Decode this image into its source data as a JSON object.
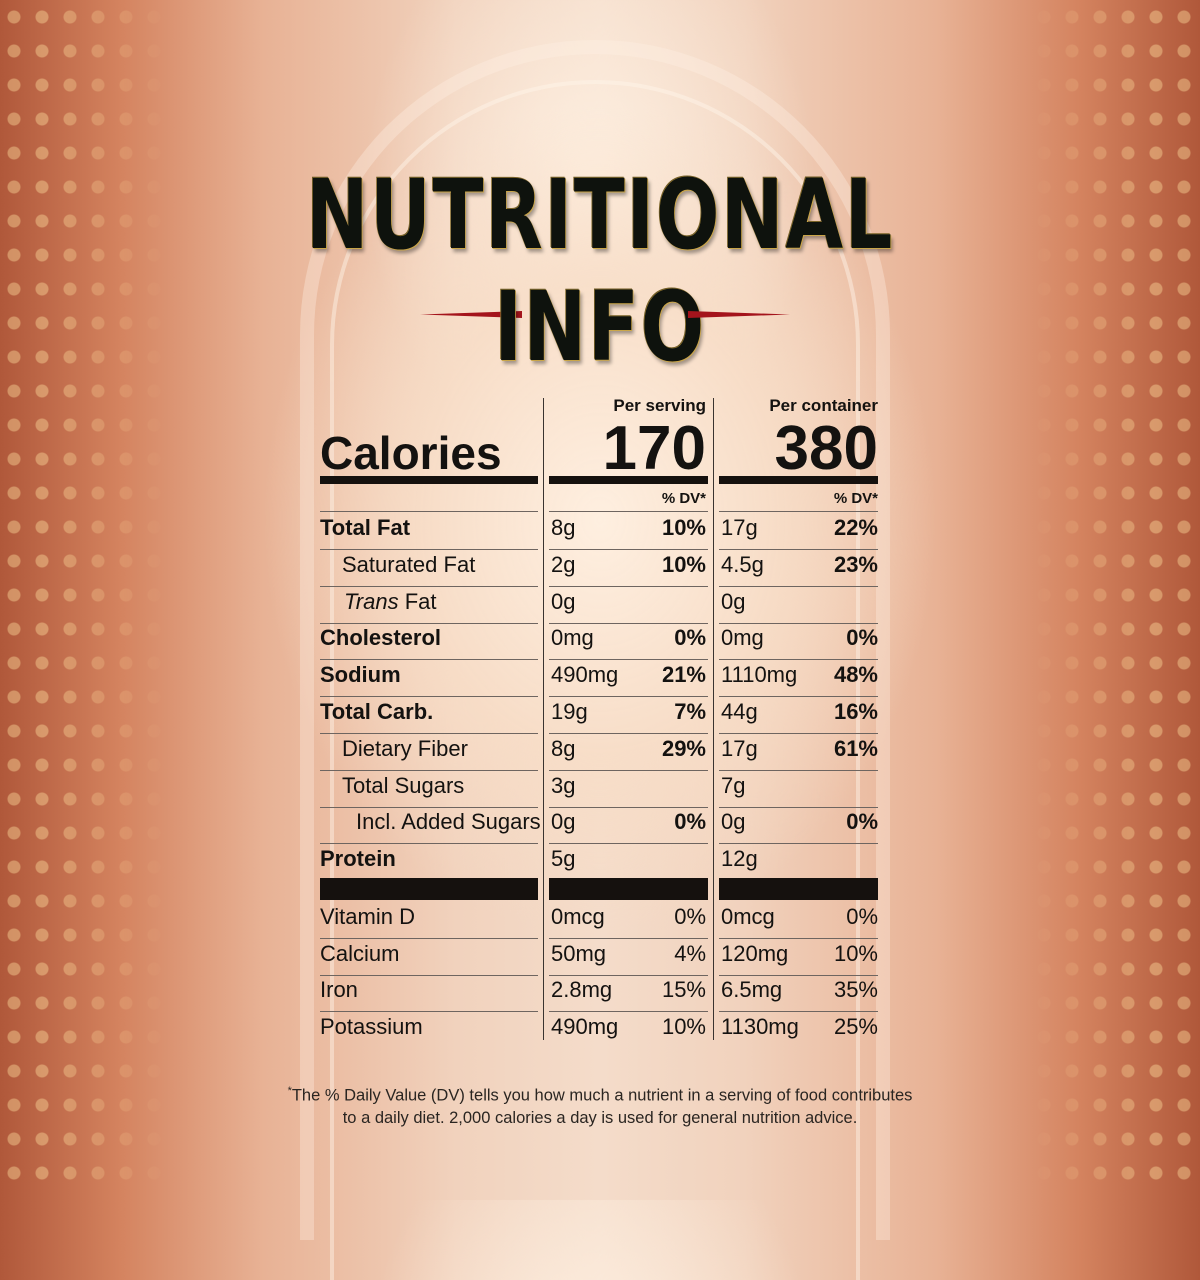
{
  "title": {
    "line1": "NUTRITIONAL",
    "line2": "INFO"
  },
  "header": {
    "per_serving": "Per serving",
    "per_container": "Per container"
  },
  "calories": {
    "label": "Calories",
    "serving": "170",
    "container": "380"
  },
  "dv_header": "% DV*",
  "nutrients": [
    {
      "label": "Total Fat",
      "bold": true,
      "indent": 0,
      "s_amt": "8g",
      "s_dv": "10%",
      "c_amt": "17g",
      "c_dv": "22%"
    },
    {
      "label": "Saturated Fat",
      "bold": false,
      "indent": 1,
      "s_amt": "2g",
      "s_dv": "10%",
      "c_amt": "4.5g",
      "c_dv": "23%"
    },
    {
      "label_italic": "Trans",
      "label": " Fat",
      "bold": false,
      "indent": 1,
      "s_amt": "0g",
      "s_dv": "",
      "c_amt": "0g",
      "c_dv": ""
    },
    {
      "label": "Cholesterol",
      "bold": true,
      "indent": 0,
      "s_amt": "0mg",
      "s_dv": "0%",
      "c_amt": "0mg",
      "c_dv": "0%"
    },
    {
      "label": "Sodium",
      "bold": true,
      "indent": 0,
      "s_amt": "490mg",
      "s_dv": "21%",
      "c_amt": "1110mg",
      "c_dv": "48%"
    },
    {
      "label": "Total Carb.",
      "bold": true,
      "indent": 0,
      "s_amt": "19g",
      "s_dv": "7%",
      "c_amt": "44g",
      "c_dv": "16%"
    },
    {
      "label": "Dietary Fiber",
      "bold": false,
      "indent": 1,
      "s_amt": "8g",
      "s_dv": "29%",
      "c_amt": "17g",
      "c_dv": "61%"
    },
    {
      "label": "Total Sugars",
      "bold": false,
      "indent": 1,
      "s_amt": "3g",
      "s_dv": "",
      "c_amt": "7g",
      "c_dv": ""
    },
    {
      "label": "Incl. Added Sugars",
      "bold": false,
      "indent": 2,
      "s_amt": "0g",
      "s_dv": "0%",
      "c_amt": "0g",
      "c_dv": "0%"
    },
    {
      "label": "Protein",
      "bold": true,
      "indent": 0,
      "s_amt": "5g",
      "s_dv": "",
      "c_amt": "12g",
      "c_dv": ""
    }
  ],
  "vitamins": [
    {
      "label": "Vitamin D",
      "s_amt": "0mcg",
      "s_dv": "0%",
      "c_amt": "0mcg",
      "c_dv": "0%"
    },
    {
      "label": "Calcium",
      "s_amt": "50mg",
      "s_dv": "4%",
      "c_amt": "120mg",
      "c_dv": "10%"
    },
    {
      "label": "Iron",
      "s_amt": "2.8mg",
      "s_dv": "15%",
      "c_amt": "6.5mg",
      "c_dv": "35%"
    },
    {
      "label": "Potassium",
      "s_amt": "490mg",
      "s_dv": "10%",
      "c_amt": "1130mg",
      "c_dv": "25%"
    }
  ],
  "footnote": {
    "mark": "*",
    "line1": "The % Daily Value (DV) tells you how much a nutrient in a serving of food contributes",
    "line2": "to a daily diet. 2,000 calories a day is used for general nutrition advice."
  }
}
